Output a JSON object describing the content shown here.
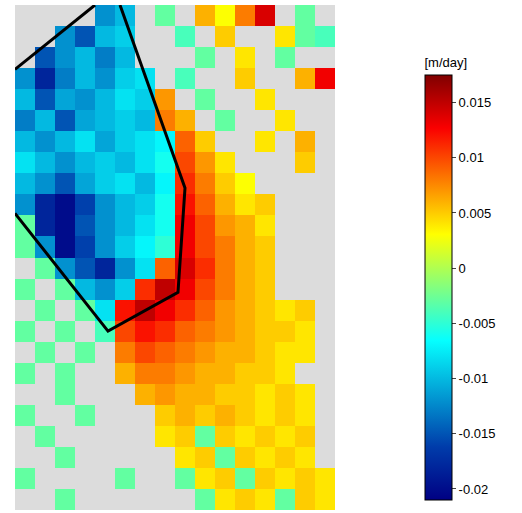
{
  "chart_data": {
    "type": "heatmap",
    "colorbar_title": "[m/day]",
    "zlim": [
      -0.021,
      0.0175
    ],
    "zticks": [
      -0.02,
      -0.015,
      -0.01,
      -0.005,
      0,
      0.005,
      0.01,
      0.015
    ],
    "tick_labels": false,
    "grid": false,
    "outline": {
      "x": [
        -0.5,
        4.15,
        7.65,
        8.0,
        4.75,
        null,
        3.5,
        -0.5
      ],
      "y": [
        9.4,
        15.0,
        13.15,
        8.2,
        -0.5,
        null,
        -0.5,
        2.56
      ]
    },
    "cells": [
      [
        null,
        null,
        null,
        null,
        -0.012,
        -0.01,
        null,
        -0.003,
        null,
        0.006,
        0.003,
        0.008,
        0.014,
        null,
        -0.003,
        null
      ],
      [
        null,
        null,
        -0.012,
        -0.015,
        -0.01,
        -0.009,
        null,
        null,
        -0.004,
        null,
        0.005,
        null,
        null,
        0.004,
        -0.003,
        -0.004
      ],
      [
        null,
        -0.015,
        -0.012,
        -0.01,
        -0.013,
        -0.01,
        null,
        null,
        null,
        -0.003,
        null,
        0.004,
        null,
        -0.003,
        null,
        null
      ],
      [
        -0.012,
        -0.018,
        -0.013,
        -0.01,
        -0.012,
        -0.009,
        -0.008,
        null,
        -0.004,
        null,
        null,
        0.005,
        null,
        null,
        0.006,
        0.013
      ],
      [
        -0.01,
        -0.015,
        -0.011,
        -0.012,
        -0.01,
        -0.008,
        -0.009,
        0.007,
        null,
        -0.003,
        null,
        null,
        0.004,
        null,
        null,
        null
      ],
      [
        -0.013,
        -0.01,
        -0.015,
        -0.011,
        -0.01,
        -0.009,
        -0.01,
        0.008,
        0.006,
        null,
        -0.003,
        null,
        null,
        0.004,
        null,
        null
      ],
      [
        -0.01,
        -0.012,
        -0.01,
        -0.008,
        -0.011,
        -0.009,
        -0.008,
        -0.007,
        0.009,
        0.005,
        null,
        null,
        0.004,
        null,
        0.006,
        null
      ],
      [
        -0.008,
        -0.01,
        -0.012,
        -0.01,
        -0.009,
        -0.01,
        -0.008,
        -0.006,
        0.01,
        0.007,
        0.004,
        null,
        null,
        null,
        0.005,
        null
      ],
      [
        -0.01,
        -0.012,
        -0.015,
        -0.011,
        -0.009,
        -0.008,
        -0.01,
        -0.007,
        0.011,
        0.008,
        0.005,
        0.003,
        null,
        null,
        null,
        null
      ],
      [
        -0.012,
        -0.018,
        -0.02,
        -0.016,
        -0.012,
        -0.01,
        -0.009,
        -0.006,
        0.012,
        0.009,
        0.006,
        0.004,
        0.005,
        null,
        null,
        null
      ],
      [
        -0.003,
        -0.018,
        -0.02,
        -0.015,
        -0.012,
        -0.01,
        -0.008,
        -0.006,
        0.013,
        0.01,
        0.007,
        0.006,
        0.004,
        null,
        null,
        null
      ],
      [
        -0.003,
        -0.012,
        -0.02,
        -0.016,
        -0.012,
        -0.009,
        -0.007,
        -0.005,
        0.013,
        0.01,
        0.008,
        0.006,
        0.005,
        null,
        null,
        null
      ],
      [
        null,
        -0.003,
        -0.012,
        -0.015,
        -0.018,
        -0.012,
        -0.008,
        0.009,
        0.014,
        0.011,
        0.008,
        0.006,
        0.005,
        null,
        null,
        null
      ],
      [
        -0.003,
        null,
        -0.003,
        -0.01,
        -0.012,
        -0.009,
        0.011,
        0.015,
        0.013,
        0.01,
        0.008,
        0.006,
        0.005,
        null,
        null,
        null
      ],
      [
        null,
        -0.003,
        null,
        -0.003,
        -0.008,
        0.012,
        0.015,
        0.013,
        0.011,
        0.009,
        0.007,
        0.006,
        0.005,
        0.004,
        0.005,
        null
      ],
      [
        -0.003,
        null,
        -0.003,
        null,
        -0.004,
        0.01,
        0.012,
        0.011,
        0.009,
        0.008,
        0.007,
        0.006,
        0.005,
        0.005,
        0.004,
        null
      ],
      [
        null,
        -0.003,
        null,
        -0.003,
        null,
        0.008,
        0.01,
        0.009,
        0.008,
        0.007,
        0.006,
        0.006,
        0.005,
        0.004,
        0.004,
        null
      ],
      [
        -0.003,
        null,
        -0.003,
        null,
        null,
        0.006,
        0.008,
        0.008,
        0.007,
        0.006,
        0.006,
        0.005,
        0.005,
        0.004,
        null,
        null
      ],
      [
        null,
        null,
        -0.003,
        null,
        null,
        null,
        0.006,
        0.007,
        0.006,
        0.006,
        0.005,
        0.005,
        0.004,
        0.005,
        0.004,
        null
      ],
      [
        -0.003,
        null,
        null,
        -0.003,
        null,
        null,
        null,
        0.005,
        0.006,
        0.005,
        0.006,
        0.005,
        0.004,
        0.005,
        0.004,
        null
      ],
      [
        null,
        -0.003,
        null,
        null,
        null,
        null,
        null,
        0.004,
        0.005,
        -0.003,
        0.005,
        0.004,
        0.005,
        0.004,
        0.005,
        null
      ],
      [
        null,
        null,
        -0.003,
        null,
        null,
        null,
        null,
        null,
        0.004,
        0.005,
        -0.003,
        0.005,
        0.004,
        0.005,
        0.004,
        null
      ],
      [
        -0.003,
        null,
        null,
        null,
        null,
        -0.003,
        null,
        null,
        -0.003,
        0.004,
        0.005,
        -0.003,
        0.005,
        0.004,
        0.005,
        0.004
      ],
      [
        null,
        null,
        -0.003,
        null,
        null,
        null,
        null,
        null,
        null,
        -0.003,
        0.004,
        0.005,
        0.004,
        -0.003,
        0.005,
        0.004
      ]
    ]
  }
}
